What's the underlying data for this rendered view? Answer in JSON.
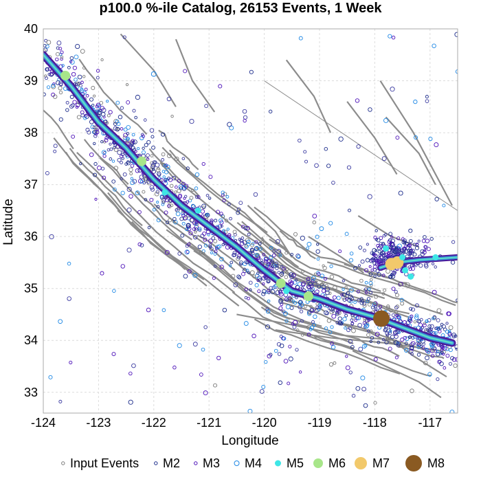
{
  "chart_data": {
    "type": "scatter",
    "title": "p100.0 %-ile Catalog, 26153 Events, 1 Week",
    "xlabel": "Longitude",
    "ylabel": "Latitude",
    "xlim": [
      -124.0,
      -116.5
    ],
    "ylim": [
      32.6,
      40.0
    ],
    "xticks": [
      "-124",
      "-123",
      "-122",
      "-121",
      "-120",
      "-119",
      "-118",
      "-117"
    ],
    "yticks": [
      "33",
      "34",
      "35",
      "36",
      "37",
      "38",
      "39",
      "40"
    ],
    "grid": true,
    "legend_position": "bottom",
    "legend": [
      {
        "label": "Input Events",
        "style": "ring",
        "color": "#7a7a7a"
      },
      {
        "label": "M2",
        "style": "ring",
        "color": "#1a2a8a"
      },
      {
        "label": "M3",
        "style": "ring",
        "color": "#4b0fb8"
      },
      {
        "label": "M4",
        "style": "ring",
        "color": "#1e88e5"
      },
      {
        "label": "M5",
        "style": "disc",
        "color": "#3ee6e6"
      },
      {
        "label": "M6",
        "style": "disc",
        "color": "#a8e68a"
      },
      {
        "label": "M7",
        "style": "disc",
        "color": "#f2c96b"
      },
      {
        "label": "M8",
        "style": "disc",
        "color": "#8a5a22"
      }
    ],
    "fault_trace": [
      [
        -124.0,
        39.5
      ],
      [
        -123.5,
        38.9
      ],
      [
        -123.0,
        38.2
      ],
      [
        -122.5,
        37.7
      ],
      [
        -122.0,
        37.1
      ],
      [
        -121.5,
        36.6
      ],
      [
        -121.0,
        36.2
      ],
      [
        -120.5,
        35.8
      ],
      [
        -120.0,
        35.35
      ],
      [
        -119.5,
        34.95
      ],
      [
        -119.0,
        34.8
      ],
      [
        -118.5,
        34.6
      ],
      [
        -118.0,
        34.45
      ],
      [
        -117.5,
        34.25
      ],
      [
        -117.0,
        34.05
      ],
      [
        -116.6,
        33.95
      ]
    ],
    "secondary_trace": [
      [
        -117.9,
        35.4
      ],
      [
        -117.6,
        35.5
      ],
      [
        -117.2,
        35.55
      ],
      [
        -116.5,
        35.6
      ]
    ],
    "large_events": [
      {
        "mag": "M8",
        "lon": -117.88,
        "lat": 34.42
      },
      {
        "mag": "M7",
        "lon": -117.59,
        "lat": 35.5
      },
      {
        "mag": "M7",
        "lon": -117.7,
        "lat": 35.47
      },
      {
        "mag": "M6",
        "lon": -122.22,
        "lat": 37.45
      },
      {
        "mag": "M6",
        "lon": -119.7,
        "lat": 35.1
      },
      {
        "mag": "M6",
        "lon": -123.6,
        "lat": 39.1
      },
      {
        "mag": "M6",
        "lon": -119.2,
        "lat": 34.85
      },
      {
        "mag": "M5",
        "lon": -117.8,
        "lat": 35.77
      },
      {
        "mag": "M5",
        "lon": -117.5,
        "lat": 35.6
      },
      {
        "mag": "M5",
        "lon": -117.45,
        "lat": 35.35
      },
      {
        "mag": "M5",
        "lon": -117.35,
        "lat": 35.23
      },
      {
        "mag": "M5",
        "lon": -116.9,
        "lat": 35.6
      },
      {
        "mag": "M5",
        "lon": -119.6,
        "lat": 34.95
      },
      {
        "mag": "M5",
        "lon": -121.8,
        "lat": 36.85
      },
      {
        "mag": "M5",
        "lon": -121.2,
        "lat": 36.5
      },
      {
        "mag": "M4",
        "lon": -122.0,
        "lat": 39.13
      }
    ]
  }
}
